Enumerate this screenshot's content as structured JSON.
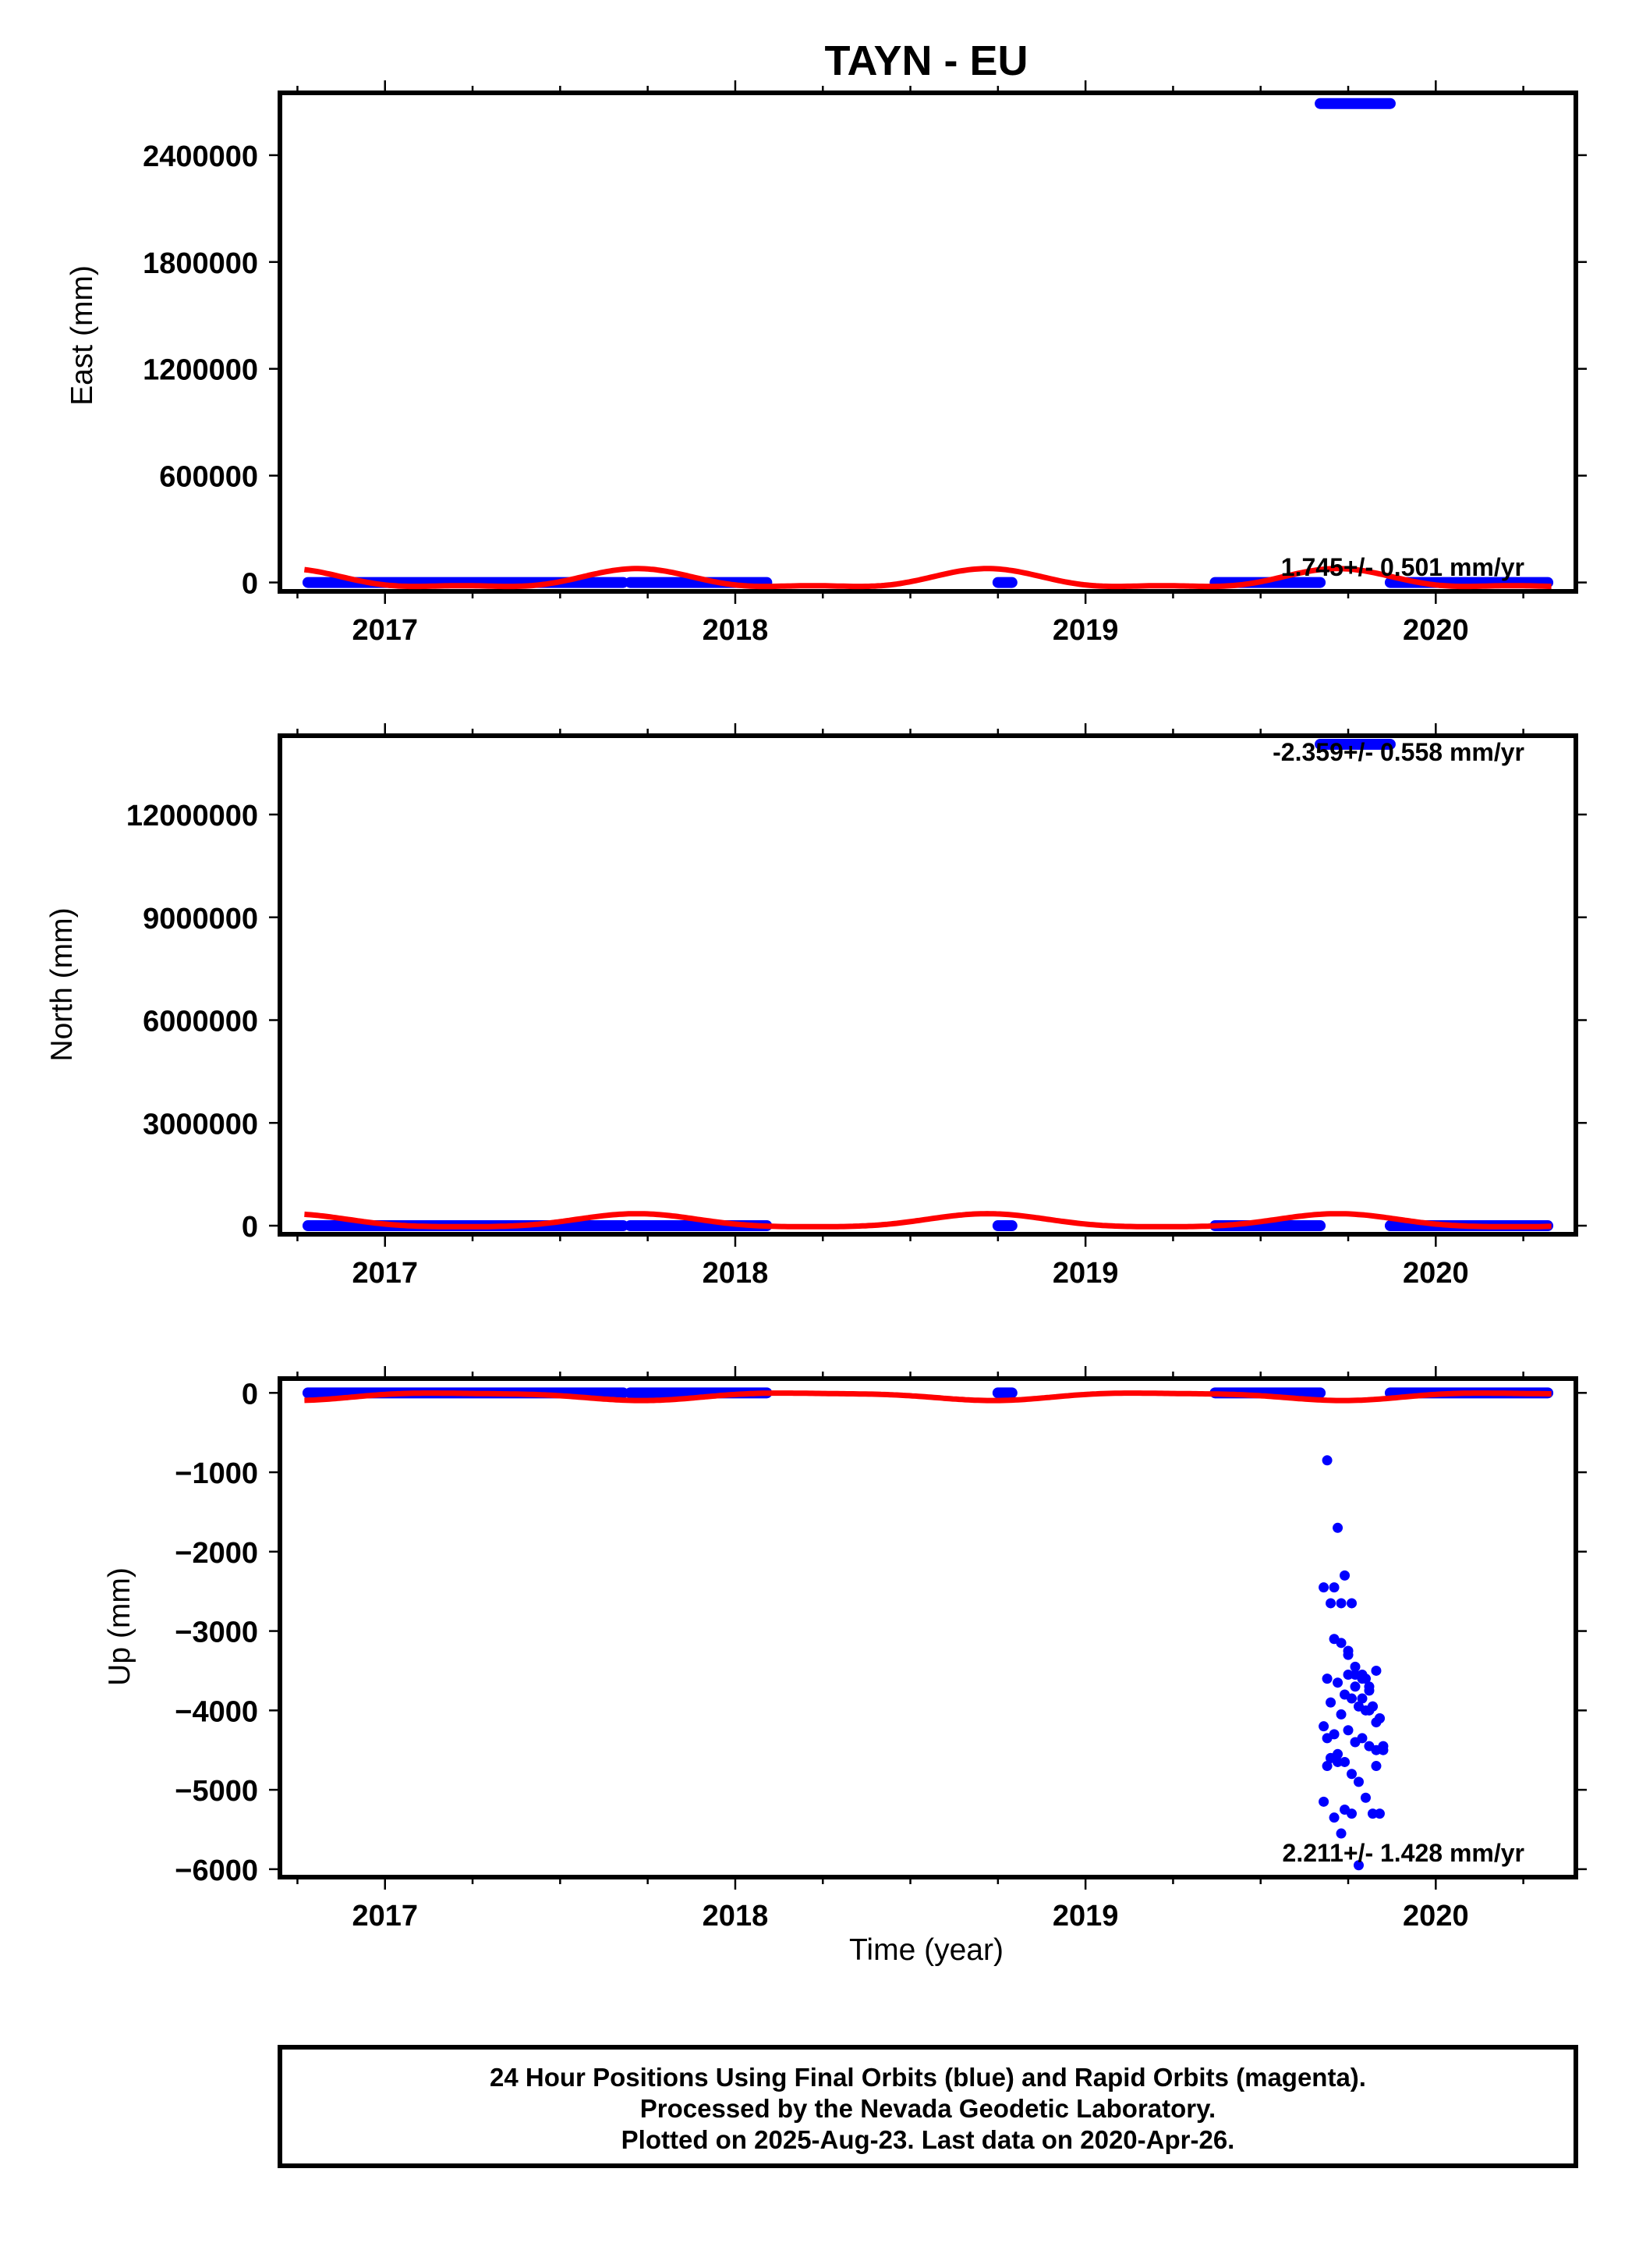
{
  "title": "TAYN - EU",
  "xlabel": "Time (year)",
  "footer": {
    "line1": "24 Hour Positions Using Final Orbits (blue) and Rapid Orbits (magenta).",
    "line2": "Processed by the Nevada Geodetic Laboratory.",
    "line3": "Plotted on 2025-Aug-23. Last data on 2020-Apr-26."
  },
  "colors": {
    "data": "#0000ff",
    "model": "#ff0000",
    "frame": "#000000"
  },
  "chart_data": [
    {
      "type": "scatter",
      "ylabel": "East (mm)",
      "xlim": [
        2016.7,
        2020.4
      ],
      "ylim": [
        -50000,
        2750000
      ],
      "x_ticks": [
        2017,
        2018,
        2019,
        2020
      ],
      "y_ticks": [
        0,
        600000,
        1200000,
        1800000,
        2400000
      ],
      "rate_label": "1.745+/- 0.501 mm/yr",
      "data_segments": [
        [
          2016.78,
          2017.68,
          0
        ],
        [
          2017.7,
          2018.09,
          0
        ],
        [
          2018.75,
          2018.79,
          0
        ],
        [
          2019.37,
          2019.67,
          0
        ],
        [
          2019.87,
          2020.32,
          0
        ]
      ],
      "outlier_segments": [
        [
          2019.67,
          2019.87,
          2690000
        ]
      ],
      "model": {
        "offset": 12000,
        "annual_amp": 48000,
        "annual_peak": 2017.72,
        "semi_amp": 18000,
        "semi_peak": 2017.22
      }
    },
    {
      "type": "scatter",
      "ylabel": "North (mm)",
      "xlim": [
        2016.7,
        2020.4
      ],
      "ylim": [
        -250000,
        14300000
      ],
      "x_ticks": [
        2017,
        2018,
        2019,
        2020
      ],
      "y_ticks": [
        0,
        3000000,
        6000000,
        9000000,
        12000000
      ],
      "rate_label": "-2.359+/- 0.558 mm/yr",
      "data_segments": [
        [
          2016.78,
          2017.68,
          0
        ],
        [
          2017.7,
          2018.09,
          0
        ],
        [
          2018.75,
          2018.79,
          0
        ],
        [
          2019.37,
          2019.67,
          0
        ],
        [
          2019.87,
          2020.32,
          0
        ]
      ],
      "outlier_segments": [
        [
          2019.67,
          2019.87,
          14050000
        ]
      ],
      "model": {
        "offset": 120000,
        "annual_amp": 190000,
        "annual_peak": 2017.72,
        "semi_amp": 40000,
        "semi_peak": 2017.22
      }
    },
    {
      "type": "scatter",
      "ylabel": "Up (mm)",
      "xlim": [
        2016.7,
        2020.4
      ],
      "ylim": [
        -6100,
        180
      ],
      "x_ticks": [
        2017,
        2018,
        2019,
        2020
      ],
      "y_ticks": [
        0,
        -1000,
        -2000,
        -3000,
        -4000,
        -5000,
        -6000
      ],
      "rate_label": "2.211+/- 1.428 mm/yr",
      "data_segments": [
        [
          2016.78,
          2017.68,
          0
        ],
        [
          2017.7,
          2018.09,
          0
        ],
        [
          2018.75,
          2018.79,
          0
        ],
        [
          2019.37,
          2019.67,
          0
        ],
        [
          2019.87,
          2020.32,
          0
        ]
      ],
      "outlier_segments": [],
      "model": {
        "offset": -40,
        "annual_amp": 45,
        "annual_peak": 2017.22,
        "semi_amp": 12,
        "semi_peak": 2017.0
      },
      "outliers": {
        "x": [
          2019.69,
          2019.72,
          2019.74,
          2019.76,
          2019.68,
          2019.7,
          2019.71,
          2019.73,
          2019.75,
          2019.77,
          2019.79,
          2019.81,
          2019.83,
          2019.69,
          2019.7,
          2019.72,
          2019.74,
          2019.76,
          2019.78,
          2019.8,
          2019.82,
          2019.84,
          2019.68,
          2019.71,
          2019.73,
          2019.75,
          2019.77,
          2019.79,
          2019.81,
          2019.83,
          2019.85,
          2019.69,
          2019.7,
          2019.72,
          2019.74,
          2019.76,
          2019.78,
          2019.8,
          2019.82,
          2019.84,
          2019.68,
          2019.71,
          2019.73,
          2019.75,
          2019.77,
          2019.79,
          2019.81,
          2019.83,
          2019.85,
          2019.7,
          2019.72,
          2019.74,
          2019.76,
          2019.78,
          2019.8,
          2019.82,
          2019.84,
          2019.69,
          2019.71,
          2019.73,
          2019.75,
          2019.77,
          2019.79,
          2019.81,
          2019.83
        ],
        "y": [
          -850,
          -1700,
          -2300,
          -2650,
          -2450,
          -2650,
          -3100,
          -3150,
          -3250,
          -3550,
          -3550,
          -3700,
          -3500,
          -3600,
          -3900,
          -3650,
          -3800,
          -3850,
          -3950,
          -4000,
          -3950,
          -4100,
          -4200,
          -4300,
          -4050,
          -4250,
          -4400,
          -4350,
          -4450,
          -4700,
          -4500,
          -4700,
          -4600,
          -4550,
          -4650,
          -4800,
          -4900,
          -5100,
          -5300,
          -5300,
          -5150,
          -5350,
          -5550,
          -3300,
          -3450,
          -3600,
          -3750,
          -4150,
          -4450,
          -4600,
          -4650,
          -5250,
          -5300,
          -5950,
          -3600,
          -3950,
          -4100,
          -4350,
          -2450,
          -2650,
          -3550,
          -3700,
          -3850,
          -4000,
          -4500
        ]
      }
    }
  ]
}
